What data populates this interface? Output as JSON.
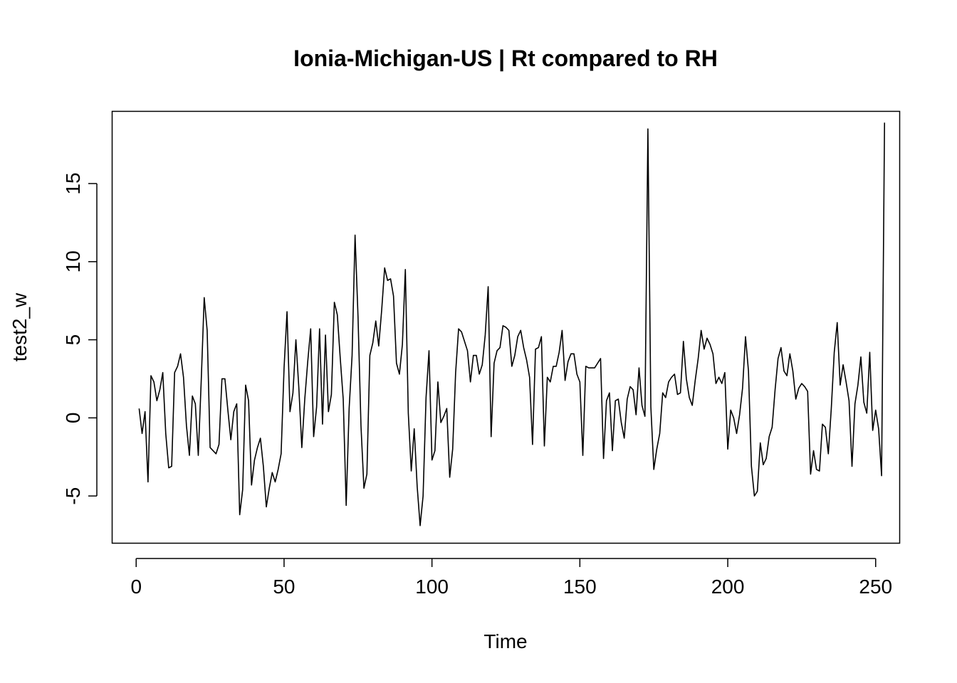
{
  "chart_data": {
    "type": "line",
    "title": "Ionia-Michigan-US | Rt compared to RH",
    "xlabel": "Time",
    "ylabel": "test2_w",
    "xlim": [
      -8,
      258
    ],
    "ylim": [
      -8,
      19.6
    ],
    "x_ticks": [
      0,
      50,
      100,
      150,
      200,
      250
    ],
    "y_ticks": [
      -5,
      0,
      5,
      10,
      15
    ],
    "grid": false,
    "series": [
      {
        "values": [
          0.6,
          -1.0,
          0.4,
          -4.1,
          2.7,
          2.3,
          1.1,
          1.8,
          2.9,
          -1.0,
          -3.2,
          -3.1,
          2.9,
          3.3,
          4.1,
          2.6,
          -0.5,
          -2.4,
          1.4,
          0.9,
          -2.4,
          2.4,
          7.7,
          5.6,
          -1.9,
          -2.1,
          -2.3,
          -1.7,
          2.5,
          2.5,
          0.5,
          -1.4,
          0.4,
          0.9,
          -6.2,
          -4.6,
          2.1,
          1.1,
          -4.3,
          -2.7,
          -1.9,
          -1.3,
          -3.1,
          -5.7,
          -4.5,
          -3.5,
          -4.1,
          -3.3,
          -2.3,
          3.2,
          6.8,
          0.4,
          1.6,
          5.0,
          1.9,
          -1.9,
          1.2,
          3.6,
          5.7,
          -1.2,
          0.7,
          5.7,
          -0.4,
          5.3,
          0.4,
          1.5,
          7.4,
          6.6,
          3.8,
          1.2,
          -5.6,
          0.6,
          4.0,
          11.7,
          6.5,
          -0.5,
          -4.5,
          -3.6,
          4.0,
          4.8,
          6.2,
          4.6,
          6.9,
          9.6,
          8.8,
          8.9,
          7.8,
          3.5,
          2.8,
          4.7,
          9.5,
          0.3,
          -3.4,
          -0.7,
          -4.4,
          -6.9,
          -5.0,
          1.3,
          4.3,
          -2.7,
          -2.1,
          2.3,
          -0.3,
          0.1,
          0.6,
          -3.8,
          -2.0,
          2.9,
          5.7,
          5.5,
          4.9,
          4.3,
          2.3,
          4.0,
          4.0,
          2.8,
          3.4,
          5.3,
          8.4,
          -1.2,
          3.5,
          4.3,
          4.5,
          5.9,
          5.8,
          5.6,
          3.3,
          4.0,
          5.2,
          5.6,
          4.5,
          3.7,
          2.6,
          -1.7,
          4.4,
          4.5,
          5.2,
          -1.8,
          2.6,
          2.3,
          3.3,
          3.3,
          4.2,
          5.6,
          2.4,
          3.6,
          4.1,
          4.1,
          2.8,
          2.3,
          -2.4,
          3.3,
          3.2,
          3.2,
          3.2,
          3.5,
          3.8,
          -2.6,
          1.1,
          1.6,
          -2.1,
          1.1,
          1.2,
          -0.3,
          -1.3,
          1.2,
          2.0,
          1.8,
          0.2,
          3.2,
          0.8,
          0.1,
          18.5,
          0.7,
          -3.3,
          -2.0,
          -1.0,
          1.6,
          1.3,
          2.3,
          2.6,
          2.8,
          1.5,
          1.6,
          4.9,
          2.5,
          1.3,
          0.8,
          2.4,
          3.8,
          5.6,
          4.4,
          5.1,
          4.7,
          4.1,
          2.2,
          2.6,
          2.2,
          2.9,
          -2.0,
          0.5,
          0.0,
          -1.0,
          0.2,
          1.9,
          5.2,
          3.0,
          -3.1,
          -5.0,
          -4.7,
          -1.6,
          -3.0,
          -2.6,
          -1.2,
          -0.6,
          1.8,
          3.8,
          4.5,
          3.0,
          2.7,
          4.1,
          3.0,
          1.2,
          1.9,
          2.2,
          2.0,
          1.7,
          -3.6,
          -2.1,
          -3.3,
          -3.4,
          -0.4,
          -0.6,
          -2.3,
          0.6,
          4.2,
          6.1,
          2.1,
          3.4,
          2.3,
          1.1,
          -3.1,
          0.9,
          2.1,
          3.9,
          1.0,
          0.3,
          4.2,
          -0.8,
          0.5,
          -0.7,
          -3.7,
          18.9
        ]
      }
    ]
  }
}
